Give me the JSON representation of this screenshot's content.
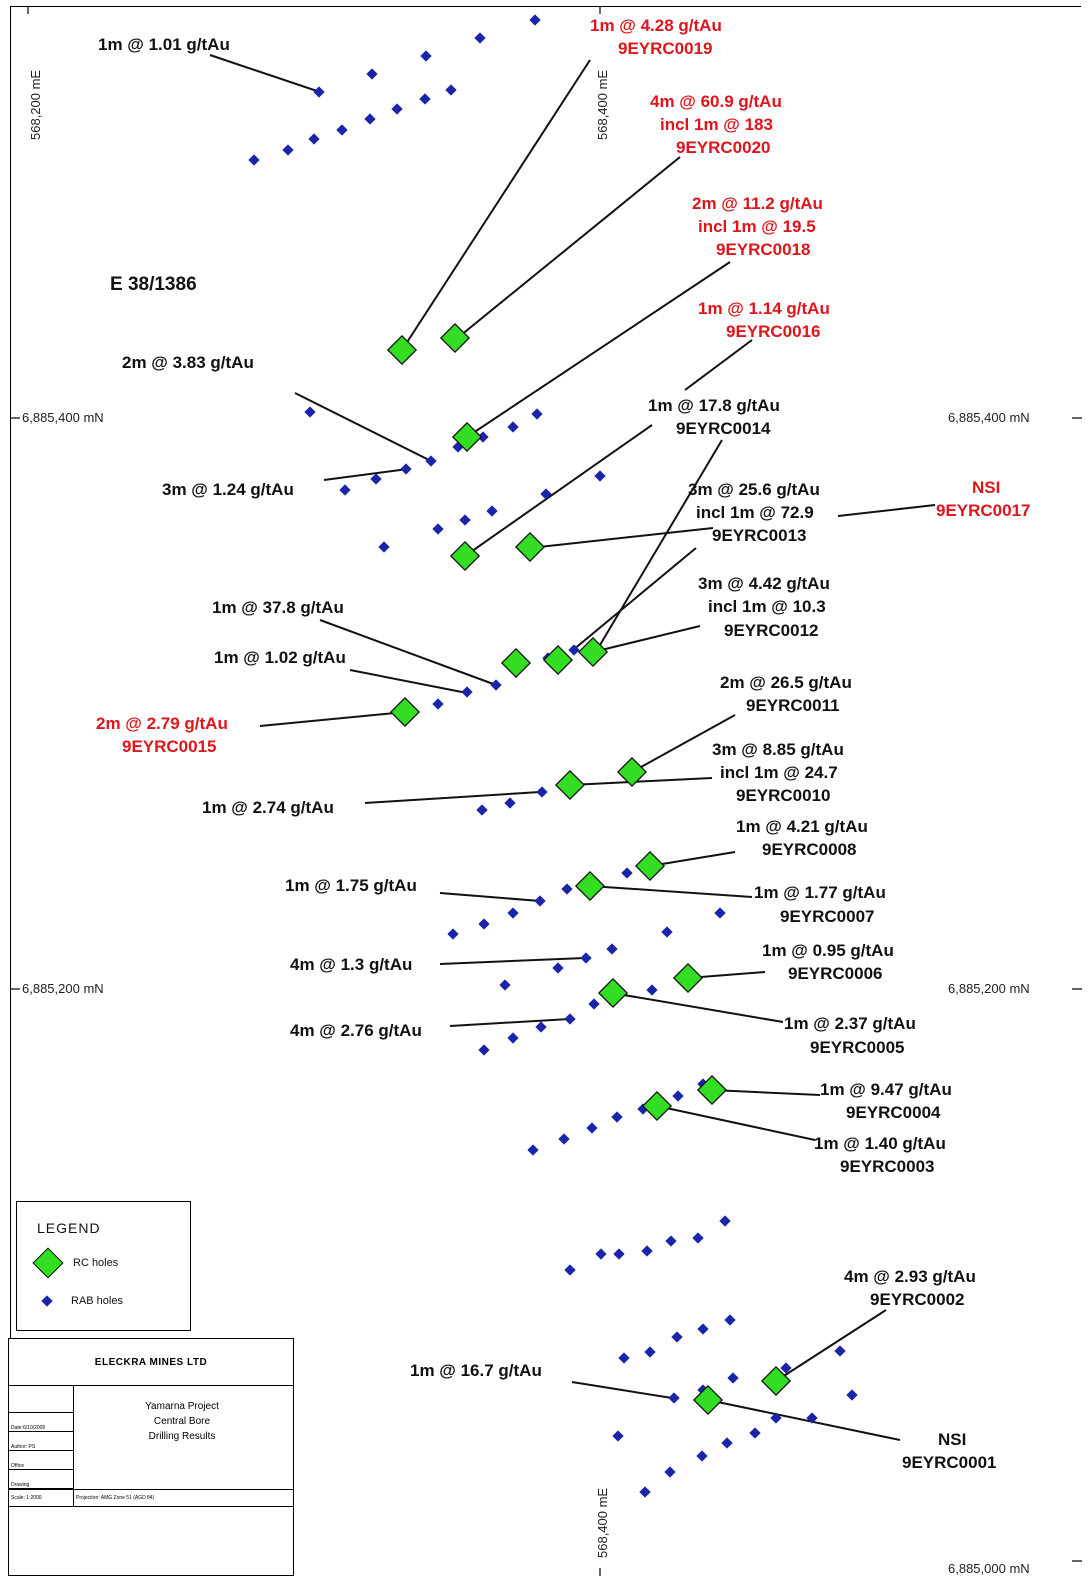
{
  "tenement": "E 38/1386",
  "grid": {
    "easting_top": "568,200 mE",
    "easting_mid_top": "568,400 mE",
    "easting_bottom": "568,400 mE",
    "north_1_left": "6,885,400 mN",
    "north_1_right": "6,885,400 mN",
    "north_2_left": "6,885,200 mN",
    "north_2_right": "6,885,200 mN",
    "north_3_right": "6,885,000 mN"
  },
  "labels": {
    "l01": "1m @ 1.01 g/tAu",
    "l02a": "1m @ 4.28 g/tAu",
    "l02b": "9EYRC0019",
    "l03a": "4m @ 60.9 g/tAu",
    "l03b": "incl 1m @ 183",
    "l03c": "9EYRC0020",
    "l04a": "2m @ 11.2 g/tAu",
    "l04b": "incl 1m @ 19.5",
    "l04c": "9EYRC0018",
    "l05a": "1m @ 1.14 g/tAu",
    "l05b": "9EYRC0016",
    "l06": "2m @ 3.83 g/tAu",
    "l07a": "1m @ 17.8 g/tAu",
    "l07b": "9EYRC0014",
    "l08": "3m @ 1.24 g/tAu",
    "l09a": "3m @ 25.6 g/tAu",
    "l09b": "incl 1m @ 72.9",
    "l09c": "9EYRC0013",
    "l10a": "NSI",
    "l10b": "9EYRC0017",
    "l11a": "3m @ 4.42 g/tAu",
    "l11b": "incl 1m @ 10.3",
    "l11c": "9EYRC0012",
    "l12": "1m @ 37.8 g/tAu",
    "l13": "1m @ 1.02 g/tAu",
    "l14a": "2m @ 2.79 g/tAu",
    "l14b": "9EYRC0015",
    "l15a": "2m @ 26.5 g/tAu",
    "l15b": "9EYRC0011",
    "l16a": "3m @ 8.85 g/tAu",
    "l16b": "incl 1m @ 24.7",
    "l16c": "9EYRC0010",
    "l17": "1m @ 2.74 g/tAu",
    "l18a": "1m @ 4.21 g/tAu",
    "l18b": "9EYRC0008",
    "l19": "1m @ 1.75 g/tAu",
    "l20a": "1m @ 1.77 g/tAu",
    "l20b": "9EYRC0007",
    "l21a": "1m @ 0.95 g/tAu",
    "l21b": "9EYRC0006",
    "l22": "4m @ 1.3 g/tAu",
    "l23": "4m @ 2.76 g/tAu",
    "l24a": "1m @ 2.37 g/tAu",
    "l24b": "9EYRC0005",
    "l25a": "1m @ 9.47 g/tAu",
    "l25b": "9EYRC0004",
    "l26a": "1m @ 1.40 g/tAu",
    "l26b": "9EYRC0003",
    "l27a": "4m @ 2.93 g/tAu",
    "l27b": "9EYRC0002",
    "l28": "1m @ 16.7 g/tAu",
    "l29a": "NSI",
    "l29b": "9EYRC0001"
  },
  "colors": {
    "rc_fill": "#33dd22",
    "rab_fill": "#1a24a8",
    "red_text": "#e0141b"
  },
  "legend": {
    "title": "LEGEND",
    "rc": "RC holes",
    "rab": "RAB holes"
  },
  "title_block": {
    "company": "ELECKRA MINES LTD",
    "project_line1": "Yamarna Project",
    "project_line2": "Central Bore",
    "project_line3": "Drilling Results",
    "date": "Date:6/10/2009",
    "author": "Author: PS",
    "office": "Office",
    "drawing": "Drawing",
    "scale": "Scale: 1:2000",
    "projection": "Projection: AMG Zone 51 (AGD 84)"
  }
}
